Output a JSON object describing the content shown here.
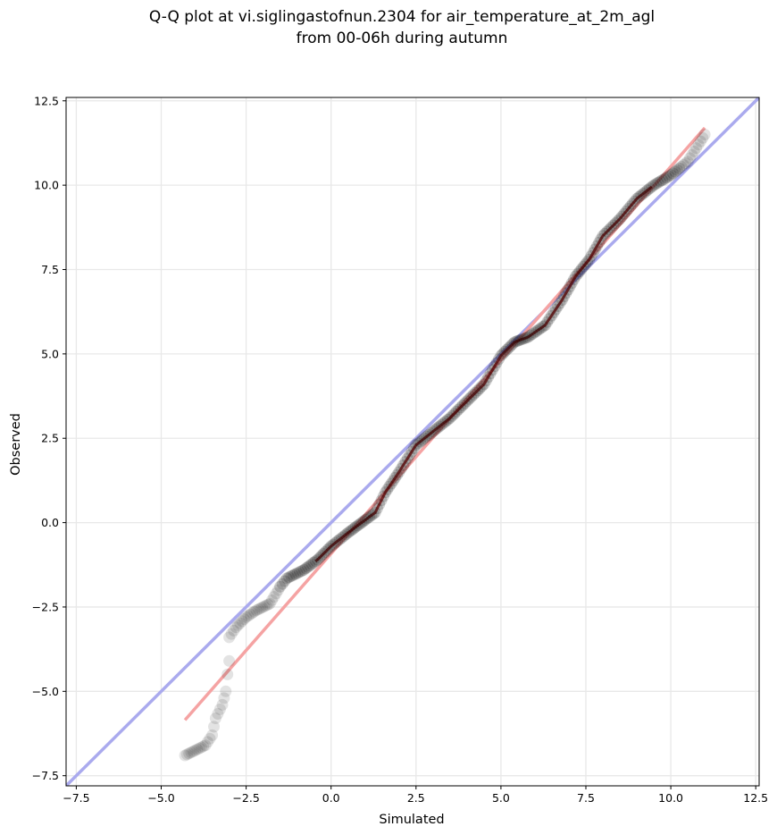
{
  "chart_data": {
    "type": "scatter",
    "title_line1": "Q-Q plot at vi.siglingastofnun.2304 for air_temperature_at_2m_agl",
    "title_line2": "from 00-06h during autumn",
    "xlabel": "Simulated",
    "ylabel": "Observed",
    "xlim": [
      -7.8,
      12.6
    ],
    "ylim": [
      -7.8,
      12.6
    ],
    "xticks": [
      -7.5,
      -5.0,
      -2.5,
      0.0,
      2.5,
      5.0,
      7.5,
      10.0,
      12.5
    ],
    "yticks": [
      -7.5,
      -5.0,
      -2.5,
      0.0,
      2.5,
      5.0,
      7.5,
      10.0,
      12.5
    ],
    "grid": true,
    "colors": {
      "points": "#000000",
      "identity_line": "#aaaaee",
      "fit_line": "#f5a3a3",
      "dense_line_dark": "#1a1a80",
      "dense_line_red": "#a01010"
    },
    "identity_line": {
      "x": [
        -7.8,
        12.6
      ],
      "y": [
        -7.8,
        12.6
      ]
    },
    "fit_line": {
      "x": [
        -4.3,
        11.0
      ],
      "y": [
        -5.85,
        11.7
      ]
    },
    "anchors": [
      [
        -4.3,
        -6.9
      ],
      [
        -4.0,
        -6.75
      ],
      [
        -3.7,
        -6.6
      ],
      [
        -3.5,
        -6.3
      ],
      [
        -3.4,
        -5.8
      ],
      [
        -3.2,
        -5.4
      ],
      [
        -3.1,
        -5.0
      ],
      [
        -3.05,
        -4.5
      ],
      [
        -3.0,
        -4.1
      ],
      [
        -3.0,
        -3.4
      ],
      [
        -2.8,
        -3.1
      ],
      [
        -2.5,
        -2.8
      ],
      [
        -2.2,
        -2.6
      ],
      [
        -1.8,
        -2.4
      ],
      [
        -1.5,
        -1.9
      ],
      [
        -1.3,
        -1.65
      ],
      [
        -0.8,
        -1.4
      ],
      [
        -0.4,
        -1.1
      ],
      [
        0.0,
        -0.7
      ],
      [
        0.5,
        -0.3
      ],
      [
        0.9,
        0.0
      ],
      [
        1.3,
        0.3
      ],
      [
        1.6,
        0.9
      ],
      [
        2.0,
        1.5
      ],
      [
        2.5,
        2.3
      ],
      [
        3.0,
        2.7
      ],
      [
        3.5,
        3.1
      ],
      [
        4.0,
        3.6
      ],
      [
        4.5,
        4.1
      ],
      [
        5.0,
        4.95
      ],
      [
        5.4,
        5.35
      ],
      [
        5.8,
        5.5
      ],
      [
        6.3,
        5.85
      ],
      [
        6.8,
        6.6
      ],
      [
        7.2,
        7.3
      ],
      [
        7.6,
        7.8
      ],
      [
        8.0,
        8.5
      ],
      [
        8.5,
        9.0
      ],
      [
        9.0,
        9.6
      ],
      [
        9.5,
        10.0
      ],
      [
        10.0,
        10.3
      ],
      [
        10.5,
        10.7
      ],
      [
        11.0,
        11.5
      ]
    ]
  }
}
